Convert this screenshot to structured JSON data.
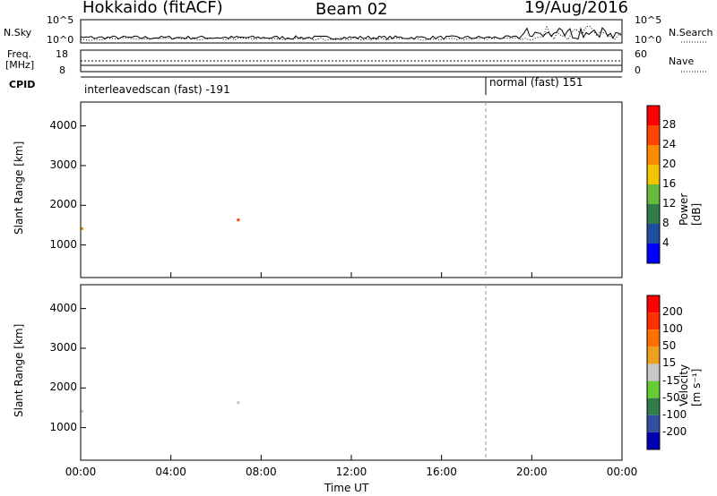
{
  "header": {
    "station": "Hokkaido (fitACF)",
    "beam": "Beam 02",
    "date": "19/Aug/2016"
  },
  "strips": {
    "nsky_label": "N.Sky",
    "nsearch_label": "N.Search",
    "nsky_ticks": [
      "10^5",
      "10^0"
    ],
    "nsearch_ticks": [
      "10^5",
      "10^0"
    ],
    "freq_label_1": "Freq.",
    "freq_label_2": "[MHz]",
    "freq_ticks": [
      "18",
      "8"
    ],
    "nave_label": "Nave",
    "nave_ticks": [
      "60",
      "0"
    ],
    "cpid_label": "CPID",
    "cpid_segments": [
      "interleavedscan (fast) -191",
      "normal (fast) 151"
    ]
  },
  "colors": {
    "power_scale": [
      "#0000ff",
      "#1e4fa0",
      "#2e7d4a",
      "#66bb3a",
      "#f5c400",
      "#ff8c00",
      "#ff4500",
      "#ff0000"
    ],
    "velocity_scale": [
      "#0000b0",
      "#3050a0",
      "#2e7d4a",
      "#66cc33",
      "#c8c8c8",
      "#f0a020",
      "#ff7000",
      "#ff3000",
      "#ff0000"
    ]
  },
  "chart_data": [
    {
      "type": "heatmap",
      "panel": "power",
      "ylabel": "Slant Range [km]",
      "xlabel": "",
      "ylim": [
        180,
        4600
      ],
      "yticks": [
        "1000",
        "2000",
        "3000",
        "4000"
      ],
      "xticks": [
        "00:00",
        "04:00",
        "08:00",
        "12:00",
        "16:00",
        "20:00",
        "00:00"
      ],
      "colorbar_label": "Power [dB]",
      "colorbar_ticks": [
        "4",
        "8",
        "12",
        "16",
        "20",
        "24",
        "28"
      ]
    },
    {
      "type": "heatmap",
      "panel": "velocity",
      "ylabel": "Slant Range [km]",
      "xlabel": "Time UT",
      "ylim": [
        180,
        4600
      ],
      "yticks": [
        "1000",
        "2000",
        "3000",
        "4000"
      ],
      "xticks": [
        "00:00",
        "04:00",
        "08:00",
        "12:00",
        "16:00",
        "20:00",
        "00:00"
      ],
      "colorbar_label": "Velocity [m s⁻¹]",
      "colorbar_ticks": [
        "200",
        "100",
        "50",
        "15",
        "-15",
        "-50",
        "-100",
        "-200"
      ]
    }
  ]
}
